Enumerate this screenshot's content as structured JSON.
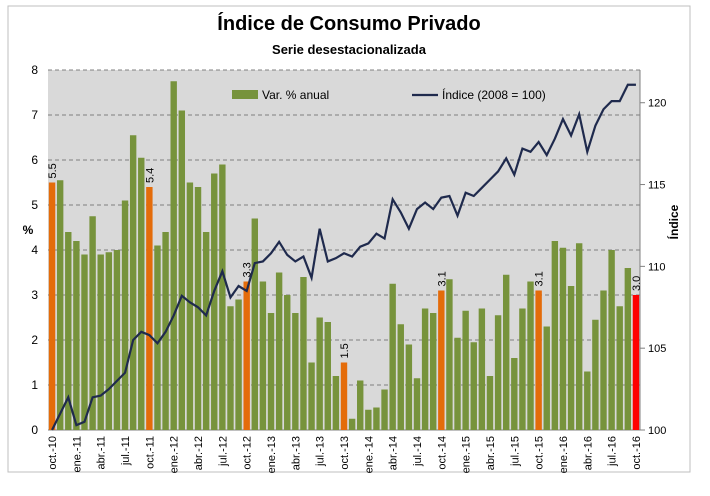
{
  "chart_data": {
    "type": "bar-line",
    "title": "Índice de Consumo Privado",
    "subtitle": "Serie desestacionalizada",
    "ylabel": "%",
    "y2label": "Índice",
    "categories": [
      "oct.-10",
      null,
      null,
      "ene.-11",
      null,
      null,
      "abr.-11",
      null,
      null,
      "jul.-11",
      null,
      null,
      "oct.-11",
      null,
      null,
      "ene.-12",
      null,
      null,
      "abr.-12",
      null,
      null,
      "jul.-12",
      null,
      null,
      "oct.-12",
      null,
      null,
      "ene.-13",
      null,
      null,
      "abr.-13",
      null,
      null,
      "jul.-13",
      null,
      null,
      "oct.-13",
      null,
      null,
      "ene.-14",
      null,
      null,
      "abr.-14",
      null,
      null,
      "jul.-14",
      null,
      null,
      "oct.-14",
      null,
      null,
      "ene.-15",
      null,
      null,
      "abr.-15",
      null,
      null,
      "jul.-15",
      null,
      null,
      "oct.-15",
      null,
      null,
      "ene.-16",
      null,
      null,
      "abr.-16",
      null,
      null,
      "jul.-16",
      null,
      null,
      "oct.-16"
    ],
    "ylim": [
      0,
      8
    ],
    "yticks": [
      0,
      1,
      2,
      3,
      4,
      5,
      6,
      7,
      8
    ],
    "y2lim": [
      100,
      122
    ],
    "y2ticks": [
      100,
      105,
      110,
      115,
      120
    ],
    "grid": true,
    "series": [
      {
        "name": "Var. % anual",
        "type": "bar",
        "color": "#77933c",
        "colors": [
          "#e46c0a",
          "#77933c",
          "#77933c",
          "#77933c",
          "#77933c",
          "#77933c",
          "#77933c",
          "#77933c",
          "#77933c",
          "#77933c",
          "#77933c",
          "#77933c",
          "#e46c0a",
          "#77933c",
          "#77933c",
          "#77933c",
          "#77933c",
          "#77933c",
          "#77933c",
          "#77933c",
          "#77933c",
          "#77933c",
          "#77933c",
          "#77933c",
          "#e46c0a",
          "#77933c",
          "#77933c",
          "#77933c",
          "#77933c",
          "#77933c",
          "#77933c",
          "#77933c",
          "#77933c",
          "#77933c",
          "#77933c",
          "#77933c",
          "#e46c0a",
          "#77933c",
          "#77933c",
          "#77933c",
          "#77933c",
          "#77933c",
          "#77933c",
          "#77933c",
          "#77933c",
          "#77933c",
          "#77933c",
          "#77933c",
          "#e46c0a",
          "#77933c",
          "#77933c",
          "#77933c",
          "#77933c",
          "#77933c",
          "#77933c",
          "#77933c",
          "#77933c",
          "#77933c",
          "#77933c",
          "#77933c",
          "#e46c0a",
          "#77933c",
          "#77933c",
          "#77933c",
          "#77933c",
          "#77933c",
          "#77933c",
          "#77933c",
          "#77933c",
          "#77933c",
          "#77933c",
          "#77933c",
          "#ff0000"
        ],
        "values": [
          5.5,
          5.55,
          4.4,
          4.2,
          3.9,
          4.75,
          3.9,
          3.95,
          4.0,
          5.1,
          6.55,
          6.05,
          5.4,
          4.1,
          4.4,
          7.75,
          7.1,
          5.5,
          5.4,
          4.4,
          5.7,
          5.9,
          2.75,
          2.9,
          3.3,
          4.7,
          3.3,
          2.6,
          3.5,
          3.0,
          2.6,
          3.4,
          1.5,
          2.5,
          2.4,
          1.2,
          1.5,
          0.25,
          1.1,
          0.45,
          0.5,
          0.9,
          3.25,
          2.35,
          1.9,
          1.15,
          2.7,
          2.6,
          3.1,
          3.35,
          2.05,
          2.65,
          1.95,
          2.7,
          1.2,
          2.55,
          3.45,
          1.6,
          2.7,
          3.3,
          3.1,
          2.3,
          4.2,
          4.05,
          3.2,
          4.15,
          1.3,
          2.45,
          3.1,
          4.0,
          2.75,
          3.6,
          3.0
        ],
        "value_labels": [
          "5.5",
          null,
          null,
          null,
          null,
          null,
          null,
          null,
          null,
          null,
          null,
          null,
          "5.4",
          null,
          null,
          null,
          null,
          null,
          null,
          null,
          null,
          null,
          null,
          null,
          "3.3",
          null,
          null,
          null,
          null,
          null,
          null,
          null,
          null,
          null,
          null,
          null,
          "1.5",
          null,
          null,
          null,
          null,
          null,
          null,
          null,
          null,
          null,
          null,
          null,
          "3.1",
          null,
          null,
          null,
          null,
          null,
          null,
          null,
          null,
          null,
          null,
          null,
          "3.1",
          null,
          null,
          null,
          null,
          null,
          null,
          null,
          null,
          null,
          null,
          null,
          "3.0"
        ]
      },
      {
        "name": "Índice (2008 = 100)",
        "type": "line",
        "axis": "y2",
        "color": "#1f2a4d",
        "values": [
          100,
          101,
          102,
          100.3,
          100.5,
          102,
          102.1,
          102.5,
          103,
          103.5,
          105.5,
          106,
          105.8,
          105.3,
          106,
          107,
          108.2,
          107.8,
          107.5,
          107,
          108.5,
          109.7,
          108.1,
          108.8,
          108.5,
          110.2,
          110.3,
          110.8,
          111.5,
          110.7,
          110.3,
          110.6,
          109.3,
          112.3,
          110.3,
          110.5,
          110.8,
          110.6,
          111.2,
          111.4,
          112,
          111.7,
          114.1,
          113.3,
          112.3,
          113.5,
          113.9,
          113.5,
          114.2,
          114.3,
          113.1,
          114.5,
          114.3,
          114.8,
          115.3,
          115.8,
          116.6,
          115.6,
          117.2,
          117,
          117.6,
          116.8,
          117.8,
          119,
          118,
          119.3,
          117,
          118.6,
          119.6,
          120.1,
          120.1,
          121.1,
          121.1
        ]
      }
    ]
  }
}
